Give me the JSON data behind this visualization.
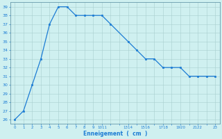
{
  "x": [
    0,
    1,
    2,
    3,
    4,
    5,
    6,
    7,
    8,
    9,
    10,
    11,
    13,
    14,
    15,
    16,
    17,
    18,
    19,
    20,
    21,
    22,
    23
  ],
  "y": [
    26,
    27,
    30,
    33,
    37,
    39,
    39,
    38,
    38,
    38,
    38,
    37,
    35,
    34,
    33,
    33,
    32,
    32,
    32,
    31,
    31,
    31,
    31
  ],
  "line_color": "#1c7cd4",
  "marker_color": "#1c7cd4",
  "bg_color": "#cff0f0",
  "grid_color": "#a8cece",
  "axis_color": "#1c7cd4",
  "spine_color": "#6699aa",
  "xlabel": "Enneigement  (  cm  )",
  "xlim": [
    -0.5,
    23.5
  ],
  "ylim": [
    25.5,
    39.5
  ],
  "yticks": [
    26,
    27,
    28,
    29,
    30,
    31,
    32,
    33,
    34,
    35,
    36,
    37,
    38,
    39
  ],
  "xtick_positions": [
    0,
    1,
    2,
    3,
    4,
    5,
    6,
    7,
    8,
    9,
    10,
    13,
    14,
    15,
    16,
    17,
    18,
    19,
    20,
    21,
    22,
    23
  ],
  "xtick_labels_display": {
    "0": "0",
    "1": "1",
    "2": "2",
    "3": "3",
    "4": "4",
    "5": "5",
    "6": "6",
    "7": "7",
    "8": "8",
    "9": "9",
    "10": "1011",
    "13": "1314",
    "14": "1516",
    "15": "",
    "16": "1718",
    "17": "1920",
    "18": "",
    "19": "2122",
    "20": "",
    "21": "23",
    "22": "",
    "23": ""
  },
  "figsize": [
    3.2,
    2.0
  ],
  "dpi": 100
}
